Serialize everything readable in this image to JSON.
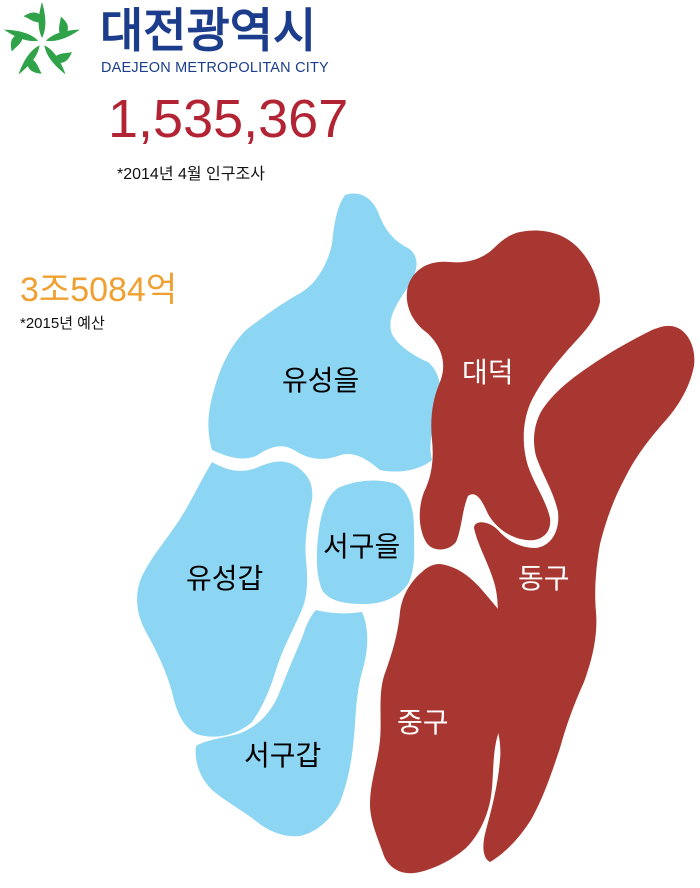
{
  "header": {
    "city_name_ko": "대전광역시",
    "city_name_en": "DAEJEON METROPOLITAN CITY",
    "emblem_icon": "daejeon-emblem-icon"
  },
  "population": {
    "value": "1,535,367",
    "note": "*2014년 4월 인구조사"
  },
  "budget": {
    "value": "3조5084억",
    "note": "*2015년 예산"
  },
  "map": {
    "colors": {
      "group_blue": "#8dd6f3",
      "group_red": "#a83731",
      "label_blue_text": "#000000",
      "label_red_text": "#ffffff"
    },
    "districts": [
      {
        "name": "유성을",
        "group": "blue"
      },
      {
        "name": "유성갑",
        "group": "blue"
      },
      {
        "name": "서구을",
        "group": "blue"
      },
      {
        "name": "서구갑",
        "group": "blue"
      },
      {
        "name": "대덕",
        "group": "red"
      },
      {
        "name": "동구",
        "group": "red"
      },
      {
        "name": "중구",
        "group": "red"
      }
    ]
  },
  "colors": {
    "title_blue": "#1c3d8c",
    "population_red": "#b22433",
    "budget_orange": "#f0a030",
    "emblem_green": "#2fa24a"
  }
}
